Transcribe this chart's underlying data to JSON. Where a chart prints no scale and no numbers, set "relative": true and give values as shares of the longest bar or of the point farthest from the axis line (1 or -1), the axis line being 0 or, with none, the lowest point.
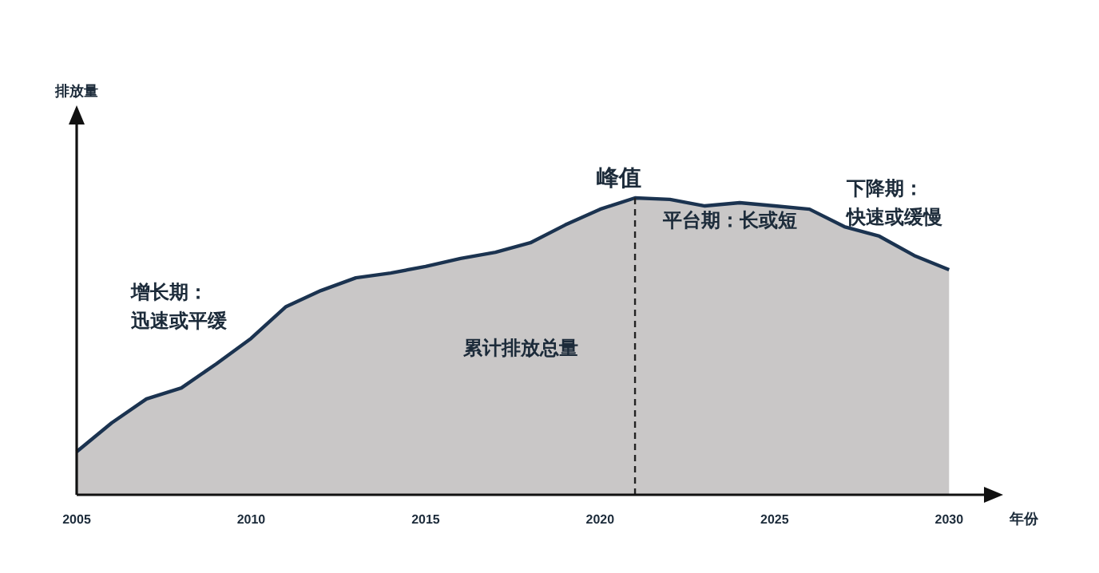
{
  "chart_data": {
    "type": "area",
    "relative": true,
    "xlabel": "年份",
    "x": [
      2005,
      2006,
      2007,
      2008,
      2009,
      2010,
      2011,
      2012,
      2013,
      2014,
      2015,
      2016,
      2017,
      2018,
      2019,
      2020,
      2021,
      2022,
      2023,
      2024,
      2025,
      2026,
      2027,
      2028,
      2029,
      2030
    ],
    "series": [
      {
        "color": "#c9c7c7",
        "values": [
          0.145,
          0.242,
          0.323,
          0.36,
          0.441,
          0.527,
          0.634,
          0.688,
          0.731,
          0.747,
          0.769,
          0.796,
          0.817,
          0.849,
          0.909,
          0.962,
          1,
          0.995,
          0.973,
          0.984,
          0.973,
          0.962,
          0.903,
          0.871,
          0.806,
          0.758
        ]
      }
    ],
    "xlim": [
      2005,
      2031
    ],
    "xticks": [
      2005,
      2010,
      2015,
      2020,
      2025,
      2030
    ],
    "ref_lines": [
      {
        "axis": "x",
        "value": 2021,
        "line_style": "dashed",
        "color": "#222222"
      }
    ],
    "annotations": [
      {
        "text": "峰值",
        "x": 2021,
        "y": 1
      },
      "增长期：",
      "迅速或平缓",
      "累计排放总量",
      "平台期：长或短",
      "下降期：",
      "快速或缓慢",
      "排放量"
    ]
  }
}
